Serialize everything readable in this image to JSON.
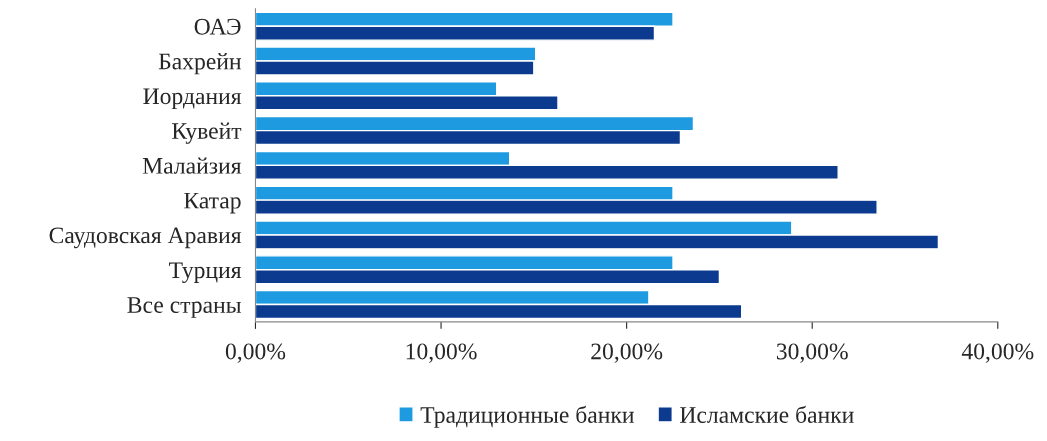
{
  "chart_data": {
    "type": "bar",
    "orientation": "horizontal",
    "categories": [
      "ОАЭ",
      "Бахрейн",
      "Иордания",
      "Кувейт",
      "Малайзия",
      "Катар",
      "Саудовская Аравия",
      "Турция",
      "Все страны"
    ],
    "series": [
      {
        "name": "Традиционные банки",
        "color": "#1e9be0",
        "values": [
          22.5,
          15.1,
          13.0,
          23.6,
          13.7,
          22.5,
          28.9,
          22.5,
          21.2
        ]
      },
      {
        "name": "Исламские банки",
        "color": "#0b3a8f",
        "values": [
          21.5,
          15.0,
          16.3,
          22.9,
          31.4,
          33.5,
          36.8,
          25.0,
          26.2
        ]
      }
    ],
    "xlim": [
      0,
      40
    ],
    "xticks": [
      {
        "value": 0,
        "label": "0,00%"
      },
      {
        "value": 10,
        "label": "10,00%"
      },
      {
        "value": 20,
        "label": "20,00%"
      },
      {
        "value": 30,
        "label": "30,00%"
      },
      {
        "value": 40,
        "label": "40,00%"
      }
    ],
    "grid": false,
    "legend": "bottom"
  }
}
